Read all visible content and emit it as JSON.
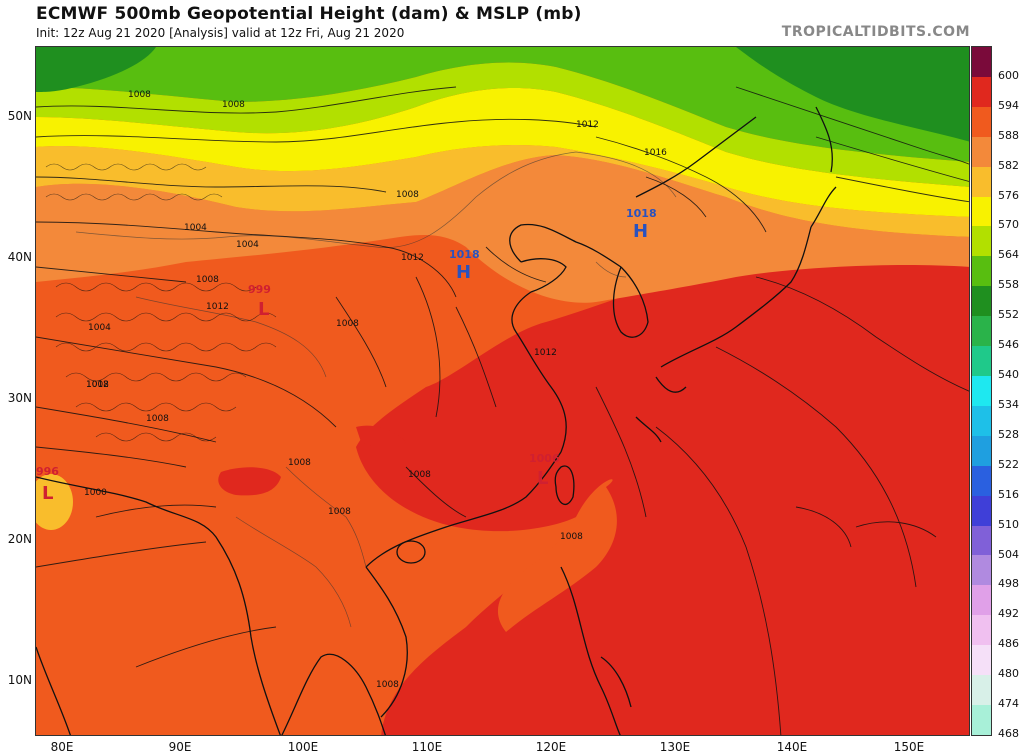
{
  "header": {
    "title": "ECMWF 500mb Geopotential Height (dam) & MSLP (mb)",
    "subtitle": "Init: 12z Aug 21 2020   [Analysis]   valid at 12z Fri, Aug 21 2020",
    "brand": "TROPICALTIDBITS.COM"
  },
  "axes": {
    "lat_labels": [
      "50N",
      "40N",
      "30N",
      "20N",
      "10N"
    ],
    "lon_labels": [
      "80E",
      "90E",
      "100E",
      "110E",
      "120E",
      "130E",
      "140E",
      "150E"
    ]
  },
  "colorbar": {
    "labels": [
      "600",
      "594",
      "588",
      "582",
      "576",
      "570",
      "564",
      "558",
      "552",
      "546",
      "540",
      "534",
      "528",
      "522",
      "516",
      "510",
      "504",
      "498",
      "492",
      "486",
      "480",
      "474",
      "468"
    ],
    "colors": [
      "#7a0a3a",
      "#e0281e",
      "#f05a1e",
      "#f3893a",
      "#f9bd2c",
      "#f8f200",
      "#b2e000",
      "#58be10",
      "#1f8f1f",
      "#2ab34a",
      "#1fc98a",
      "#1ee8f0",
      "#1ec0e8",
      "#1f9fe0",
      "#2a60e0",
      "#3f3fd8",
      "#8060d8",
      "#b08ae0",
      "#e0a0e8",
      "#f0c0f0",
      "#f5e0f8",
      "#d8f0e8",
      "#a8f0d8"
    ]
  },
  "map": {
    "pressure_systems": [
      {
        "type": "H",
        "value": "1018",
        "color": "#2a52be"
      },
      {
        "type": "H",
        "value": "1018",
        "color": "#2a52be"
      },
      {
        "type": "L",
        "value": "999",
        "color": "#d02030"
      },
      {
        "type": "L",
        "value": "996",
        "color": "#d02030"
      },
      {
        "type": "L",
        "value": "1006",
        "color": "#d02030"
      }
    ],
    "isobar_labels": [
      "1008",
      "1008",
      "1012",
      "1016",
      "1008",
      "1004",
      "1012",
      "1004",
      "1008",
      "1012",
      "1008",
      "1012",
      "1008",
      "1008",
      "1004",
      "1008",
      "1012",
      "1000",
      "1008",
      "1008",
      "1008",
      "1008"
    ]
  }
}
